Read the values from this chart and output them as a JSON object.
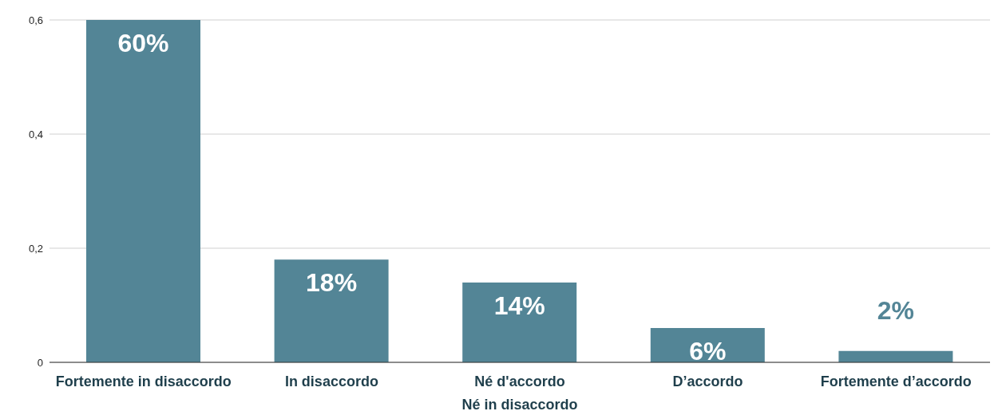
{
  "chart_data": {
    "type": "bar",
    "categories": [
      "Fortemente in disaccordo",
      "In disaccordo",
      "Né d'accordo\nNé in disaccordo",
      "D’accordo",
      "Fortemente d’accordo"
    ],
    "values": [
      0.6,
      0.18,
      0.14,
      0.06,
      0.02
    ],
    "value_labels": [
      "60%",
      "18%",
      "14%",
      "6%",
      "2%"
    ],
    "color": "#538596",
    "ylim": [
      0,
      0.6
    ],
    "yticks": [
      {
        "value": 0,
        "label": "0"
      },
      {
        "value": 0.2,
        "label": "0,2"
      },
      {
        "value": 0.4,
        "label": "0,4"
      },
      {
        "value": 0.6,
        "label": "0,6"
      }
    ],
    "grid": "y"
  }
}
